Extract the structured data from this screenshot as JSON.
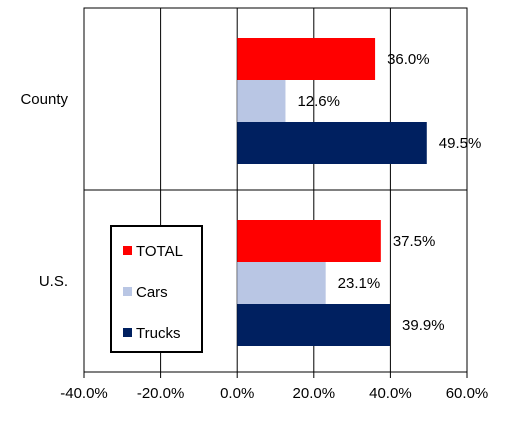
{
  "chart_data": {
    "type": "bar",
    "orientation": "horizontal",
    "categories": [
      "County",
      "U.S."
    ],
    "series": [
      {
        "name": "TOTAL",
        "color": "#ff0000",
        "values": [
          36.0,
          37.5
        ],
        "labels": [
          "36.0%",
          "37.5%"
        ]
      },
      {
        "name": "Cars",
        "color": "#b9c6e4",
        "values": [
          12.6,
          23.1
        ],
        "labels": [
          "12.6%",
          "23.1%"
        ]
      },
      {
        "name": "Trucks",
        "color": "#002060",
        "values": [
          49.5,
          39.9
        ],
        "labels": [
          "49.5%",
          "39.9%"
        ]
      }
    ],
    "xlim": [
      -40,
      60
    ],
    "xticks": [
      -40,
      -20,
      0,
      20,
      40,
      60
    ],
    "xtick_labels": [
      "-40.0%",
      "-20.0%",
      "0.0%",
      "20.0%",
      "40.0%",
      "60.0%"
    ],
    "grid": true,
    "legend_position": "inside-left-bottom"
  }
}
